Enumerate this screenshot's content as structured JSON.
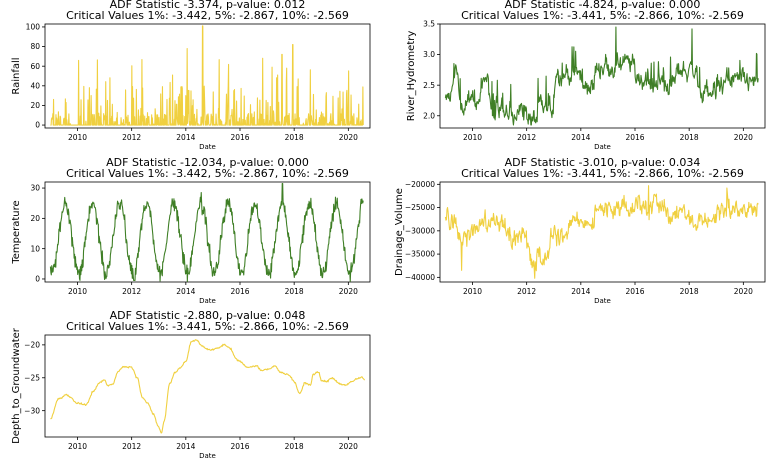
{
  "colors": {
    "green": "#3f7f26",
    "yellow": "#f0d040"
  },
  "chart_data": [
    {
      "type": "line",
      "var": "Rainfall",
      "title": [
        "ADF Statistic -3.374, p-value: 0.012",
        "Critical Values 1%: -3.442, 5%: -2.867, 10%: -2.569"
      ],
      "xlabel": "Date",
      "ylabel": "Rainfall",
      "color": "yellow",
      "xlim": [
        2008.8,
        2020.8
      ],
      "ylim": [
        -3,
        103
      ],
      "xticks": [
        2010,
        2012,
        2014,
        2016,
        2018,
        2020
      ],
      "yticks": [
        0,
        20,
        40,
        60,
        80,
        100
      ],
      "gen": "rain",
      "yfmt": 0
    },
    {
      "type": "line",
      "var": "River_Hydrometry",
      "title": [
        "ADF Statistic -4.824, p-value: 0.000",
        "Critical Values 1%: -3.441, 5%: -2.866, 10%: -2.569"
      ],
      "xlabel": "Date",
      "ylabel": "River_Hydrometry",
      "color": "green",
      "xlim": [
        2008.8,
        2020.8
      ],
      "ylim": [
        1.8,
        3.5
      ],
      "xticks": [
        2010,
        2012,
        2014,
        2016,
        2018,
        2020
      ],
      "yticks": [
        2.0,
        2.5,
        3.0,
        3.5
      ],
      "gen": "river",
      "yfmt": 1
    },
    {
      "type": "line",
      "var": "Temperature",
      "title": [
        "ADF Statistic -12.034, p-value: 0.000",
        "Critical Values 1%: -3.442, 5%: -2.867, 10%: -2.569"
      ],
      "xlabel": "Date",
      "ylabel": "Temperature",
      "color": "green",
      "xlim": [
        2008.8,
        2020.8
      ],
      "ylim": [
        -1,
        32
      ],
      "xticks": [
        2010,
        2012,
        2014,
        2016,
        2018,
        2020
      ],
      "yticks": [
        0,
        10,
        20,
        30
      ],
      "gen": "temp",
      "yfmt": 0
    },
    {
      "type": "line",
      "var": "Drainage_Volume",
      "title": [
        "ADF Statistic -3.010, p-value: 0.034",
        "Critical Values 1%: -3.441, 5%: -2.866, 10%: -2.569"
      ],
      "xlabel": "Date",
      "ylabel": "Drainage_Volume",
      "color": "yellow",
      "xlim": [
        2008.8,
        2020.8
      ],
      "ylim": [
        -41000,
        -19500
      ],
      "xticks": [
        2010,
        2012,
        2014,
        2016,
        2018,
        2020
      ],
      "yticks": [
        -40000,
        -35000,
        -30000,
        -25000,
        -20000
      ],
      "gen": "drain",
      "yfmt": 0
    },
    {
      "type": "line",
      "var": "Depth_to_Groundwater",
      "title": [
        "ADF Statistic -2.880, p-value: 0.048",
        "Critical Values 1%: -3.441, 5%: -2.866, 10%: -2.569"
      ],
      "xlabel": "Date",
      "ylabel": "Depth_to_Groundwater",
      "color": "yellow",
      "xlim": [
        2008.8,
        2020.8
      ],
      "ylim": [
        -34,
        -18.5
      ],
      "xticks": [
        2010,
        2012,
        2014,
        2016,
        2018,
        2020
      ],
      "yticks": [
        -30,
        -25,
        -20
      ],
      "gen": "depth",
      "yfmt": 0,
      "anchors": [
        [
          2009.0,
          -31.2
        ],
        [
          2009.3,
          -28.2
        ],
        [
          2009.6,
          -27.6
        ],
        [
          2010.0,
          -28.8
        ],
        [
          2010.3,
          -29.1
        ],
        [
          2010.6,
          -27.0
        ],
        [
          2010.8,
          -25.8
        ],
        [
          2011.0,
          -25.3
        ],
        [
          2011.1,
          -26.2
        ],
        [
          2011.3,
          -26.0
        ],
        [
          2011.5,
          -24.0
        ],
        [
          2011.7,
          -23.3
        ],
        [
          2012.0,
          -23.4
        ],
        [
          2012.2,
          -25.0
        ],
        [
          2012.4,
          -28.0
        ],
        [
          2012.6,
          -28.9
        ],
        [
          2012.8,
          -30.5
        ],
        [
          2013.0,
          -32.5
        ],
        [
          2013.1,
          -33.4
        ],
        [
          2013.2,
          -31.5
        ],
        [
          2013.4,
          -26.0
        ],
        [
          2013.6,
          -24.2
        ],
        [
          2013.8,
          -23.5
        ],
        [
          2014.0,
          -22.5
        ],
        [
          2014.2,
          -19.5
        ],
        [
          2014.4,
          -19.3
        ],
        [
          2014.6,
          -20.2
        ],
        [
          2014.9,
          -20.8
        ],
        [
          2015.2,
          -20.5
        ],
        [
          2015.4,
          -20.0
        ],
        [
          2015.6,
          -20.4
        ],
        [
          2015.9,
          -22.3
        ],
        [
          2016.3,
          -23.4
        ],
        [
          2016.6,
          -23.2
        ],
        [
          2016.8,
          -23.9
        ],
        [
          2017.0,
          -23.7
        ],
        [
          2017.3,
          -23.2
        ],
        [
          2017.5,
          -24.2
        ],
        [
          2017.8,
          -24.5
        ],
        [
          2018.0,
          -25.6
        ],
        [
          2018.2,
          -27.4
        ],
        [
          2018.4,
          -25.8
        ],
        [
          2018.6,
          -26.2
        ],
        [
          2018.7,
          -24.5
        ],
        [
          2018.9,
          -24.1
        ],
        [
          2019.0,
          -25.4
        ],
        [
          2019.2,
          -25.6
        ],
        [
          2019.4,
          -25.0
        ],
        [
          2019.7,
          -25.9
        ],
        [
          2019.9,
          -26.2
        ],
        [
          2020.1,
          -25.6
        ],
        [
          2020.3,
          -25.1
        ],
        [
          2020.5,
          -24.9
        ],
        [
          2020.6,
          -25.3
        ]
      ]
    }
  ]
}
